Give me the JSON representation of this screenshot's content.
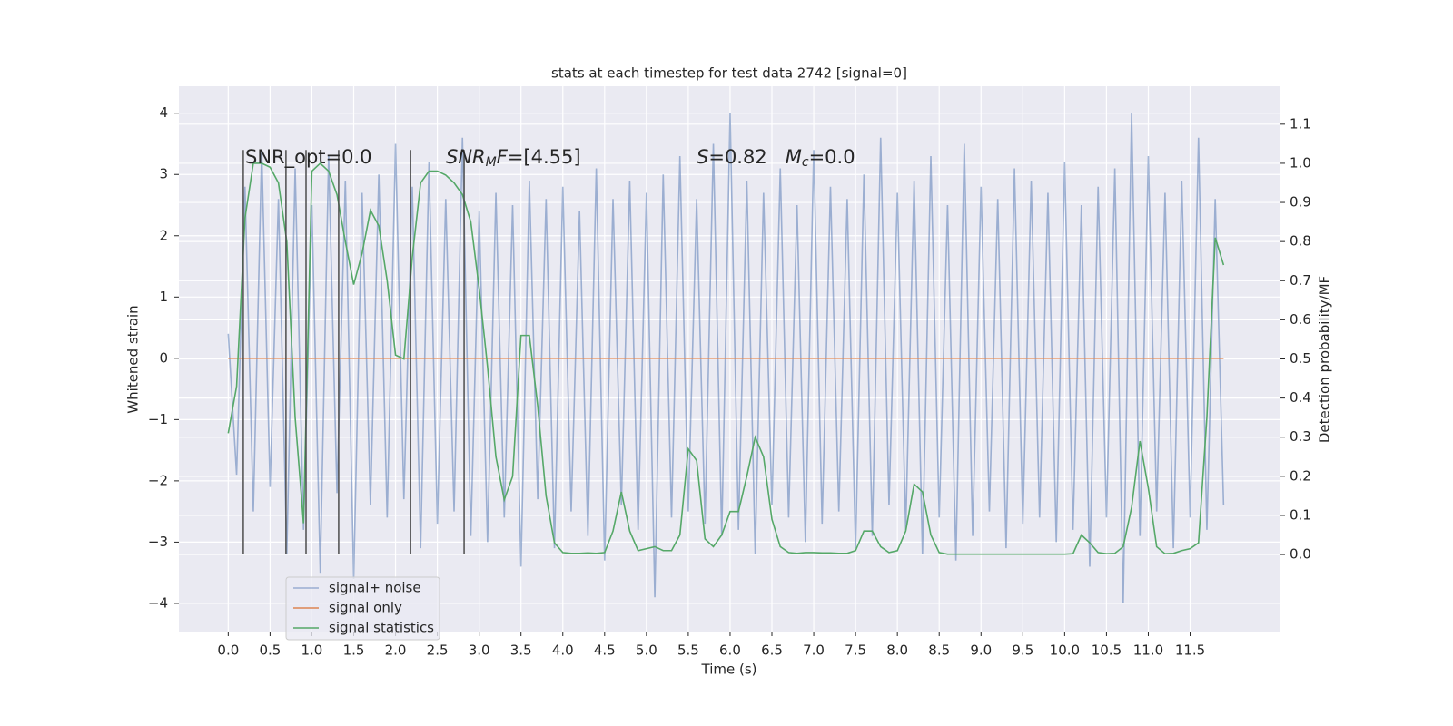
{
  "chart_data": {
    "type": "line",
    "title": "stats at each timestep for test data 2742 [signal=0]",
    "x_label": "Time (s)",
    "y_label": "Whitened strain",
    "y2_label": "Detection probability/MF",
    "xlim": [
      -0.59,
      12.58
    ],
    "ylim": [
      -4.46,
      4.44
    ],
    "y2lim": [
      -0.197,
      1.197
    ],
    "xticks": [
      {
        "value": 0,
        "label": "0.0"
      },
      0.5,
      {
        "value": 1,
        "label": "1.0"
      },
      1.5,
      {
        "value": 2,
        "label": "2.0"
      },
      2.5,
      {
        "value": 3,
        "label": "3.0"
      },
      3.5,
      {
        "value": 4,
        "label": "4.0"
      },
      4.5,
      {
        "value": 5,
        "label": "5.0"
      },
      5.5,
      {
        "value": 6,
        "label": "6.0"
      },
      6.5,
      {
        "value": 7,
        "label": "7.0"
      },
      7.5,
      {
        "value": 8,
        "label": "8.0"
      },
      8.5,
      {
        "value": 9,
        "label": "9.0"
      },
      9.5,
      {
        "value": 10,
        "label": "10.0"
      },
      10.5,
      {
        "value": 11,
        "label": "11.0"
      },
      11.5
    ],
    "yticks": [
      {
        "value": -4,
        "label": "−4"
      },
      {
        "value": -3,
        "label": "−3"
      },
      {
        "value": -2,
        "label": "−2"
      },
      {
        "value": -1,
        "label": "−1"
      },
      0,
      1,
      2,
      3,
      4
    ],
    "y2ticks": [
      {
        "value": 0,
        "label": "0.0"
      },
      0.1,
      0.2,
      0.3,
      0.4,
      0.5,
      0.6,
      0.7,
      0.8,
      0.9,
      {
        "value": 1,
        "label": "1.0"
      },
      1.1
    ],
    "grid": true,
    "legend": "lower left",
    "x": [
      0,
      0.1,
      0.2,
      0.3,
      0.4,
      0.5,
      0.6,
      0.7,
      0.8,
      0.9,
      1,
      1.1,
      1.2,
      1.3,
      1.4,
      1.5,
      1.6,
      1.7,
      1.8,
      1.9,
      2,
      2.1,
      2.2,
      2.3,
      2.4,
      2.5,
      2.6,
      2.7,
      2.8,
      2.9,
      3,
      3.1,
      3.2,
      3.3,
      3.4,
      3.5,
      3.6,
      3.7,
      3.8,
      3.9,
      4,
      4.1,
      4.2,
      4.3,
      4.4,
      4.5,
      4.6,
      4.7,
      4.8,
      4.9,
      5,
      5.1,
      5.2,
      5.3,
      5.4,
      5.5,
      5.6,
      5.7,
      5.8,
      5.9,
      6,
      6.1,
      6.2,
      6.3,
      6.4,
      6.5,
      6.6,
      6.7,
      6.8,
      6.9,
      7,
      7.1,
      7.2,
      7.3,
      7.4,
      7.5,
      7.6,
      7.7,
      7.8,
      7.9,
      8,
      8.1,
      8.2,
      8.3,
      8.4,
      8.5,
      8.6,
      8.7,
      8.8,
      8.9,
      9,
      9.1,
      9.2,
      9.3,
      9.4,
      9.5,
      9.6,
      9.7,
      9.8,
      9.9,
      10,
      10.1,
      10.2,
      10.3,
      10.4,
      10.5,
      10.6,
      10.7,
      10.8,
      10.9,
      11,
      11.1,
      11.2,
      11.3,
      11.4,
      11.5,
      11.6,
      11.7,
      11.8,
      11.9
    ],
    "series": [
      {
        "name": "signal+ noise",
        "color": "#4c72b0",
        "opacity": 0.5,
        "values": [
          0.4,
          -1.9,
          2.8,
          -2.5,
          3.4,
          -2.1,
          2.6,
          -3.2,
          3.1,
          -2.8,
          2.5,
          -3.5,
          3.3,
          -2.2,
          2.9,
          -3.6,
          2.7,
          -2.4,
          3.0,
          -2.6,
          3.5,
          -2.3,
          2.8,
          -3.1,
          3.2,
          -2.7,
          2.6,
          -2.5,
          3.6,
          -2.9,
          2.4,
          -3.0,
          2.7,
          -2.6,
          2.5,
          -3.4,
          2.9,
          -2.3,
          2.6,
          -3.1,
          2.8,
          -2.5,
          2.4,
          -2.9,
          3.1,
          -3.3,
          2.6,
          -2.4,
          2.9,
          -2.8,
          2.7,
          -3.9,
          3.0,
          -2.6,
          3.3,
          -2.5,
          2.6,
          -2.7,
          3.5,
          -2.9,
          4.0,
          -2.8,
          2.9,
          -3.2,
          2.7,
          -2.4,
          3.1,
          -2.6,
          2.5,
          -3.0,
          3.4,
          -2.7,
          2.8,
          -2.5,
          2.6,
          -3.1,
          3.0,
          -2.9,
          3.6,
          -2.4,
          2.7,
          -2.8,
          2.9,
          -3.2,
          3.3,
          -2.6,
          2.5,
          -3.3,
          3.5,
          -2.9,
          2.8,
          -2.5,
          2.6,
          -3.1,
          3.1,
          -2.7,
          2.9,
          -2.6,
          2.7,
          -3.0,
          3.2,
          -2.8,
          2.5,
          -3.4,
          2.8,
          -2.6,
          3.1,
          -4.0,
          4.0,
          -2.9,
          3.3,
          -2.5,
          2.7,
          -3.1,
          2.9,
          -2.6,
          3.6,
          -2.8,
          2.6,
          -2.4
        ]
      },
      {
        "name": "signal only",
        "color": "#dd8452",
        "opacity": 1,
        "values": [
          0,
          0,
          0,
          0,
          0,
          0,
          0,
          0,
          0,
          0,
          0,
          0,
          0,
          0,
          0,
          0,
          0,
          0,
          0,
          0,
          0,
          0,
          0,
          0,
          0,
          0,
          0,
          0,
          0,
          0,
          0,
          0,
          0,
          0,
          0,
          0,
          0,
          0,
          0,
          0,
          0,
          0,
          0,
          0,
          0,
          0,
          0,
          0,
          0,
          0,
          0,
          0,
          0,
          0,
          0,
          0,
          0,
          0,
          0,
          0,
          0,
          0,
          0,
          0,
          0,
          0,
          0,
          0,
          0,
          0,
          0,
          0,
          0,
          0,
          0,
          0,
          0,
          0,
          0,
          0,
          0,
          0,
          0,
          0,
          0,
          0,
          0,
          0,
          0,
          0,
          0,
          0,
          0,
          0,
          0,
          0,
          0,
          0,
          0,
          0,
          0,
          0,
          0,
          0,
          0,
          0,
          0,
          0,
          0,
          0,
          0,
          0,
          0,
          0,
          0,
          0,
          0,
          0,
          0,
          0
        ]
      },
      {
        "name": "signal statistics",
        "color": "#55a868",
        "opacity": 1,
        "axis": "y2",
        "values": [
          0.31,
          0.43,
          0.86,
          1.0,
          1.0,
          0.99,
          0.95,
          0.8,
          0.35,
          0.08,
          0.98,
          1.0,
          0.98,
          0.92,
          0.8,
          0.69,
          0.77,
          0.88,
          0.84,
          0.7,
          0.51,
          0.5,
          0.76,
          0.95,
          0.98,
          0.98,
          0.97,
          0.95,
          0.92,
          0.85,
          0.68,
          0.48,
          0.25,
          0.14,
          0.2,
          0.56,
          0.56,
          0.38,
          0.15,
          0.03,
          0.005,
          0.003,
          0.003,
          0.004,
          0.003,
          0.005,
          0.06,
          0.16,
          0.06,
          0.01,
          0.015,
          0.02,
          0.01,
          0.01,
          0.05,
          0.27,
          0.24,
          0.04,
          0.02,
          0.05,
          0.11,
          0.11,
          0.2,
          0.3,
          0.25,
          0.09,
          0.02,
          0.005,
          0.003,
          0.005,
          0.005,
          0.004,
          0.004,
          0.003,
          0.003,
          0.01,
          0.06,
          0.06,
          0.02,
          0.005,
          0.01,
          0.06,
          0.18,
          0.16,
          0.05,
          0.005,
          0.001,
          0.001,
          0.001,
          0.001,
          0.001,
          0.001,
          0.001,
          0.001,
          0.001,
          0.001,
          0.001,
          0.001,
          0.001,
          0.001,
          0.001,
          0.002,
          0.05,
          0.03,
          0.005,
          0.002,
          0.003,
          0.02,
          0.12,
          0.29,
          0.17,
          0.02,
          0.002,
          0.003,
          0.01,
          0.015,
          0.03,
          0.35,
          0.81,
          0.74
        ]
      }
    ],
    "vlines": {
      "x": [
        0.18,
        0.69,
        0.93,
        1.32,
        2.18,
        2.82
      ],
      "ymin": -3.2,
      "ymax": 3.4,
      "color": "#4d4d4d"
    },
    "annotations": [
      {
        "parts": [
          {
            "text": "SNR_opt=0.0"
          }
        ]
      },
      {
        "parts": [
          {
            "text": "SNR",
            "italic": true
          },
          {
            "text": "M",
            "italic": true,
            "sub": true
          },
          {
            "text": "F",
            "italic": true
          },
          {
            "text": "=[4.55]"
          }
        ]
      },
      {
        "parts": [
          {
            "text": "S",
            "italic": true
          },
          {
            "text": "=0.82   "
          },
          {
            "text": "M",
            "italic": true
          },
          {
            "text": "c",
            "italic": true,
            "sub": true
          },
          {
            "text": "=0.0"
          }
        ]
      }
    ]
  }
}
